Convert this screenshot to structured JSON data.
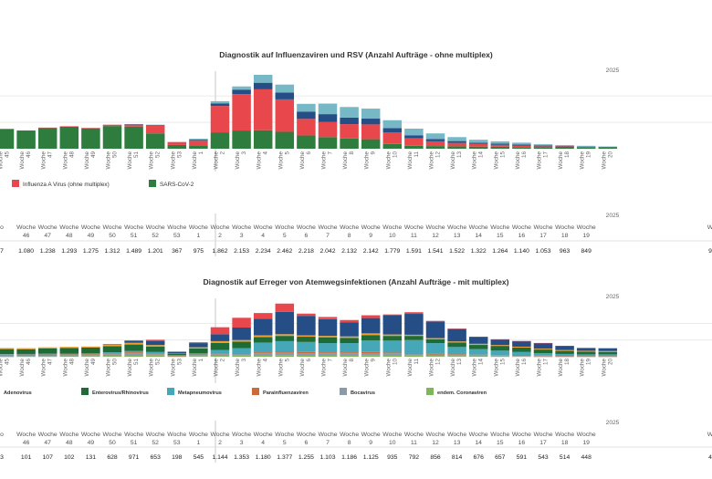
{
  "year_label": "2025",
  "weeks": [
    "45",
    "46",
    "47",
    "48",
    "49",
    "50",
    "51",
    "52",
    "53",
    "1",
    "2",
    "3",
    "4",
    "5",
    "6",
    "7",
    "8",
    "9",
    "10",
    "11",
    "12",
    "13",
    "14",
    "15",
    "16",
    "17",
    "18",
    "19",
    "20"
  ],
  "week_prefix": "Woche",
  "colors": {
    "sars_cov_2": "#2e7d3e",
    "influenza_a": "#e8474c",
    "influenza_b": "#264e86",
    "rsv": "#76b8c6",
    "grid": "#e6e6e6",
    "divider": "#c8c8c8",
    "enterovirus": "#1f6b35",
    "adenovirus": "#f0a030",
    "metapneumovirus": "#46a7b8",
    "parainfluenza": "#cc6a3a",
    "bocavirus": "#8a9aa8",
    "endem_corona": "#7fb65a"
  },
  "chart_data": [
    {
      "type": "bar",
      "title": "Diagnostik auf Influenzaviren und RSV (Anzahl Aufträge - ohne multiplex)",
      "categories": [
        "45",
        "46",
        "47",
        "48",
        "49",
        "50",
        "51",
        "52",
        "53",
        "1",
        "2",
        "3",
        "4",
        "5",
        "6",
        "7",
        "8",
        "9",
        "10",
        "11",
        "12",
        "13",
        "14",
        "15",
        "16",
        "17",
        "18",
        "19",
        "20"
      ],
      "series": [
        {
          "name": "SARS-CoV-2",
          "values": [
            750,
            690,
            780,
            830,
            770,
            860,
            840,
            580,
            140,
            130,
            620,
            690,
            700,
            640,
            500,
            440,
            390,
            360,
            180,
            110,
            100,
            90,
            80,
            75,
            60,
            50,
            70,
            50,
            50
          ]
        },
        {
          "name": "Influenza A Virus (ohne multiplex)",
          "values": [
            0,
            0,
            20,
            20,
            20,
            50,
            80,
            300,
            100,
            170,
            1000,
            1380,
            1550,
            1230,
            630,
            570,
            540,
            560,
            440,
            290,
            180,
            130,
            100,
            70,
            60,
            40,
            20,
            10,
            5
          ]
        },
        {
          "name": "",
          "values": [
            0,
            0,
            0,
            0,
            0,
            0,
            5,
            20,
            15,
            40,
            100,
            170,
            250,
            260,
            270,
            300,
            250,
            220,
            160,
            110,
            90,
            70,
            50,
            45,
            40,
            30,
            20,
            20,
            10
          ]
        },
        {
          "name": "",
          "values": [
            0,
            0,
            0,
            0,
            0,
            0,
            0,
            10,
            5,
            40,
            80,
            120,
            300,
            300,
            300,
            400,
            400,
            380,
            300,
            250,
            210,
            150,
            110,
            90,
            70,
            50,
            30,
            30,
            20
          ]
        }
      ],
      "legend": [
        "Influenza A Virus (ohne multiplex)",
        "SARS-CoV-2"
      ],
      "year_marker": "2025",
      "grid": true
    },
    {
      "type": "bar",
      "title": "Diagnostik auf Erreger von Atemwegsinfektionen (Anzahl Aufträge - mit multiplex)",
      "categories": [
        "45",
        "46",
        "47",
        "48",
        "49",
        "50",
        "51",
        "52",
        "53",
        "1",
        "2",
        "3",
        "4",
        "5",
        "6",
        "7",
        "8",
        "9",
        "10",
        "11",
        "12",
        "13",
        "14",
        "15",
        "16",
        "17",
        "18",
        "19",
        "20"
      ],
      "series": [
        {
          "name": "endem. Coronaviren",
          "values": [
            5,
            10,
            10,
            15,
            20,
            30,
            50,
            40,
            10,
            20,
            30,
            40,
            50,
            60,
            50,
            50,
            50,
            60,
            50,
            40,
            30,
            20,
            15,
            10,
            10,
            5,
            5,
            5,
            5
          ]
        },
        {
          "name": "Bocavirus",
          "values": [
            40,
            40,
            40,
            40,
            40,
            60,
            70,
            50,
            15,
            40,
            60,
            60,
            70,
            80,
            80,
            70,
            70,
            70,
            70,
            60,
            50,
            40,
            40,
            30,
            20,
            20,
            15,
            10,
            10
          ]
        },
        {
          "name": "Parainfluenzaviren",
          "values": [
            30,
            30,
            30,
            30,
            30,
            30,
            40,
            30,
            10,
            20,
            30,
            30,
            40,
            40,
            40,
            40,
            40,
            40,
            30,
            30,
            30,
            30,
            20,
            20,
            20,
            15,
            10,
            10,
            10
          ]
        },
        {
          "name": "Metapneumovirus",
          "values": [
            20,
            20,
            30,
            30,
            30,
            40,
            50,
            50,
            20,
            40,
            120,
            180,
            350,
            380,
            360,
            330,
            330,
            420,
            430,
            470,
            380,
            260,
            200,
            160,
            120,
            90,
            70,
            60,
            60
          ]
        },
        {
          "name": "Enterovirus/Rhinovirus",
          "values": [
            180,
            170,
            190,
            200,
            210,
            220,
            230,
            200,
            60,
            180,
            260,
            230,
            200,
            190,
            190,
            210,
            190,
            190,
            170,
            150,
            140,
            160,
            150,
            170,
            160,
            130,
            110,
            100,
            90
          ]
        },
        {
          "name": "Adenovirus",
          "values": [
            40,
            40,
            40,
            40,
            40,
            50,
            60,
            50,
            15,
            40,
            60,
            60,
            60,
            60,
            50,
            50,
            50,
            60,
            50,
            40,
            40,
            40,
            40,
            30,
            30,
            30,
            30,
            30,
            30
          ]
        },
        {
          "name": "",
          "values": [
            0,
            0,
            0,
            0,
            0,
            20,
            80,
            150,
            40,
            150,
            250,
            450,
            600,
            800,
            700,
            600,
            500,
            550,
            700,
            750,
            600,
            450,
            250,
            200,
            200,
            200,
            150,
            100,
            100
          ]
        },
        {
          "name": "",
          "values": [
            0,
            0,
            0,
            0,
            0,
            0,
            0,
            40,
            20,
            30,
            250,
            350,
            200,
            300,
            80,
            80,
            90,
            100,
            20,
            60,
            20,
            10,
            5,
            10,
            5,
            5,
            0,
            0,
            0
          ]
        }
      ],
      "legend": [
        "Adenovirus",
        "Enterovirus/Rhinovirus",
        "Metapneumovirus",
        "Parainfluenzaviren",
        "Bocavirus",
        "endem. Coronaviren"
      ],
      "year_marker": "2025",
      "grid": true
    }
  ],
  "table1": {
    "year_label": "2025",
    "weeks": [
      "46",
      "47",
      "48",
      "49",
      "50",
      "51",
      "52",
      "53",
      "1",
      "2",
      "3",
      "4",
      "5",
      "6",
      "7",
      "8",
      "9",
      "10",
      "11",
      "12",
      "13",
      "14",
      "15",
      "16",
      "17",
      "18",
      "19"
    ],
    "values": [
      "1.080",
      "1.238",
      "1.293",
      "1.275",
      "1.312",
      "1.489",
      "1.201",
      "367",
      "975",
      "1.862",
      "2.153",
      "2.234",
      "2.462",
      "2.218",
      "2.042",
      "2.132",
      "2.142",
      "1.779",
      "1.591",
      "1.541",
      "1.522",
      "1.322",
      "1.264",
      "1.140",
      "1.053",
      "963",
      "849"
    ],
    "partial_first": "7",
    "partial_last": "9"
  },
  "table2": {
    "year_label": "2025",
    "weeks": [
      "46",
      "47",
      "48",
      "49",
      "50",
      "51",
      "52",
      "53",
      "1",
      "2",
      "3",
      "4",
      "5",
      "6",
      "7",
      "8",
      "9",
      "10",
      "11",
      "12",
      "13",
      "14",
      "15",
      "16",
      "17",
      "18",
      "19"
    ],
    "values": [
      "101",
      "107",
      "102",
      "131",
      "628",
      "971",
      "653",
      "198",
      "545",
      "1.144",
      "1.353",
      "1.180",
      "1.377",
      "1.255",
      "1.103",
      "1.186",
      "1.125",
      "935",
      "792",
      "856",
      "814",
      "676",
      "657",
      "591",
      "543",
      "514",
      "448"
    ],
    "partial_first": "3",
    "partial_last": "4"
  }
}
